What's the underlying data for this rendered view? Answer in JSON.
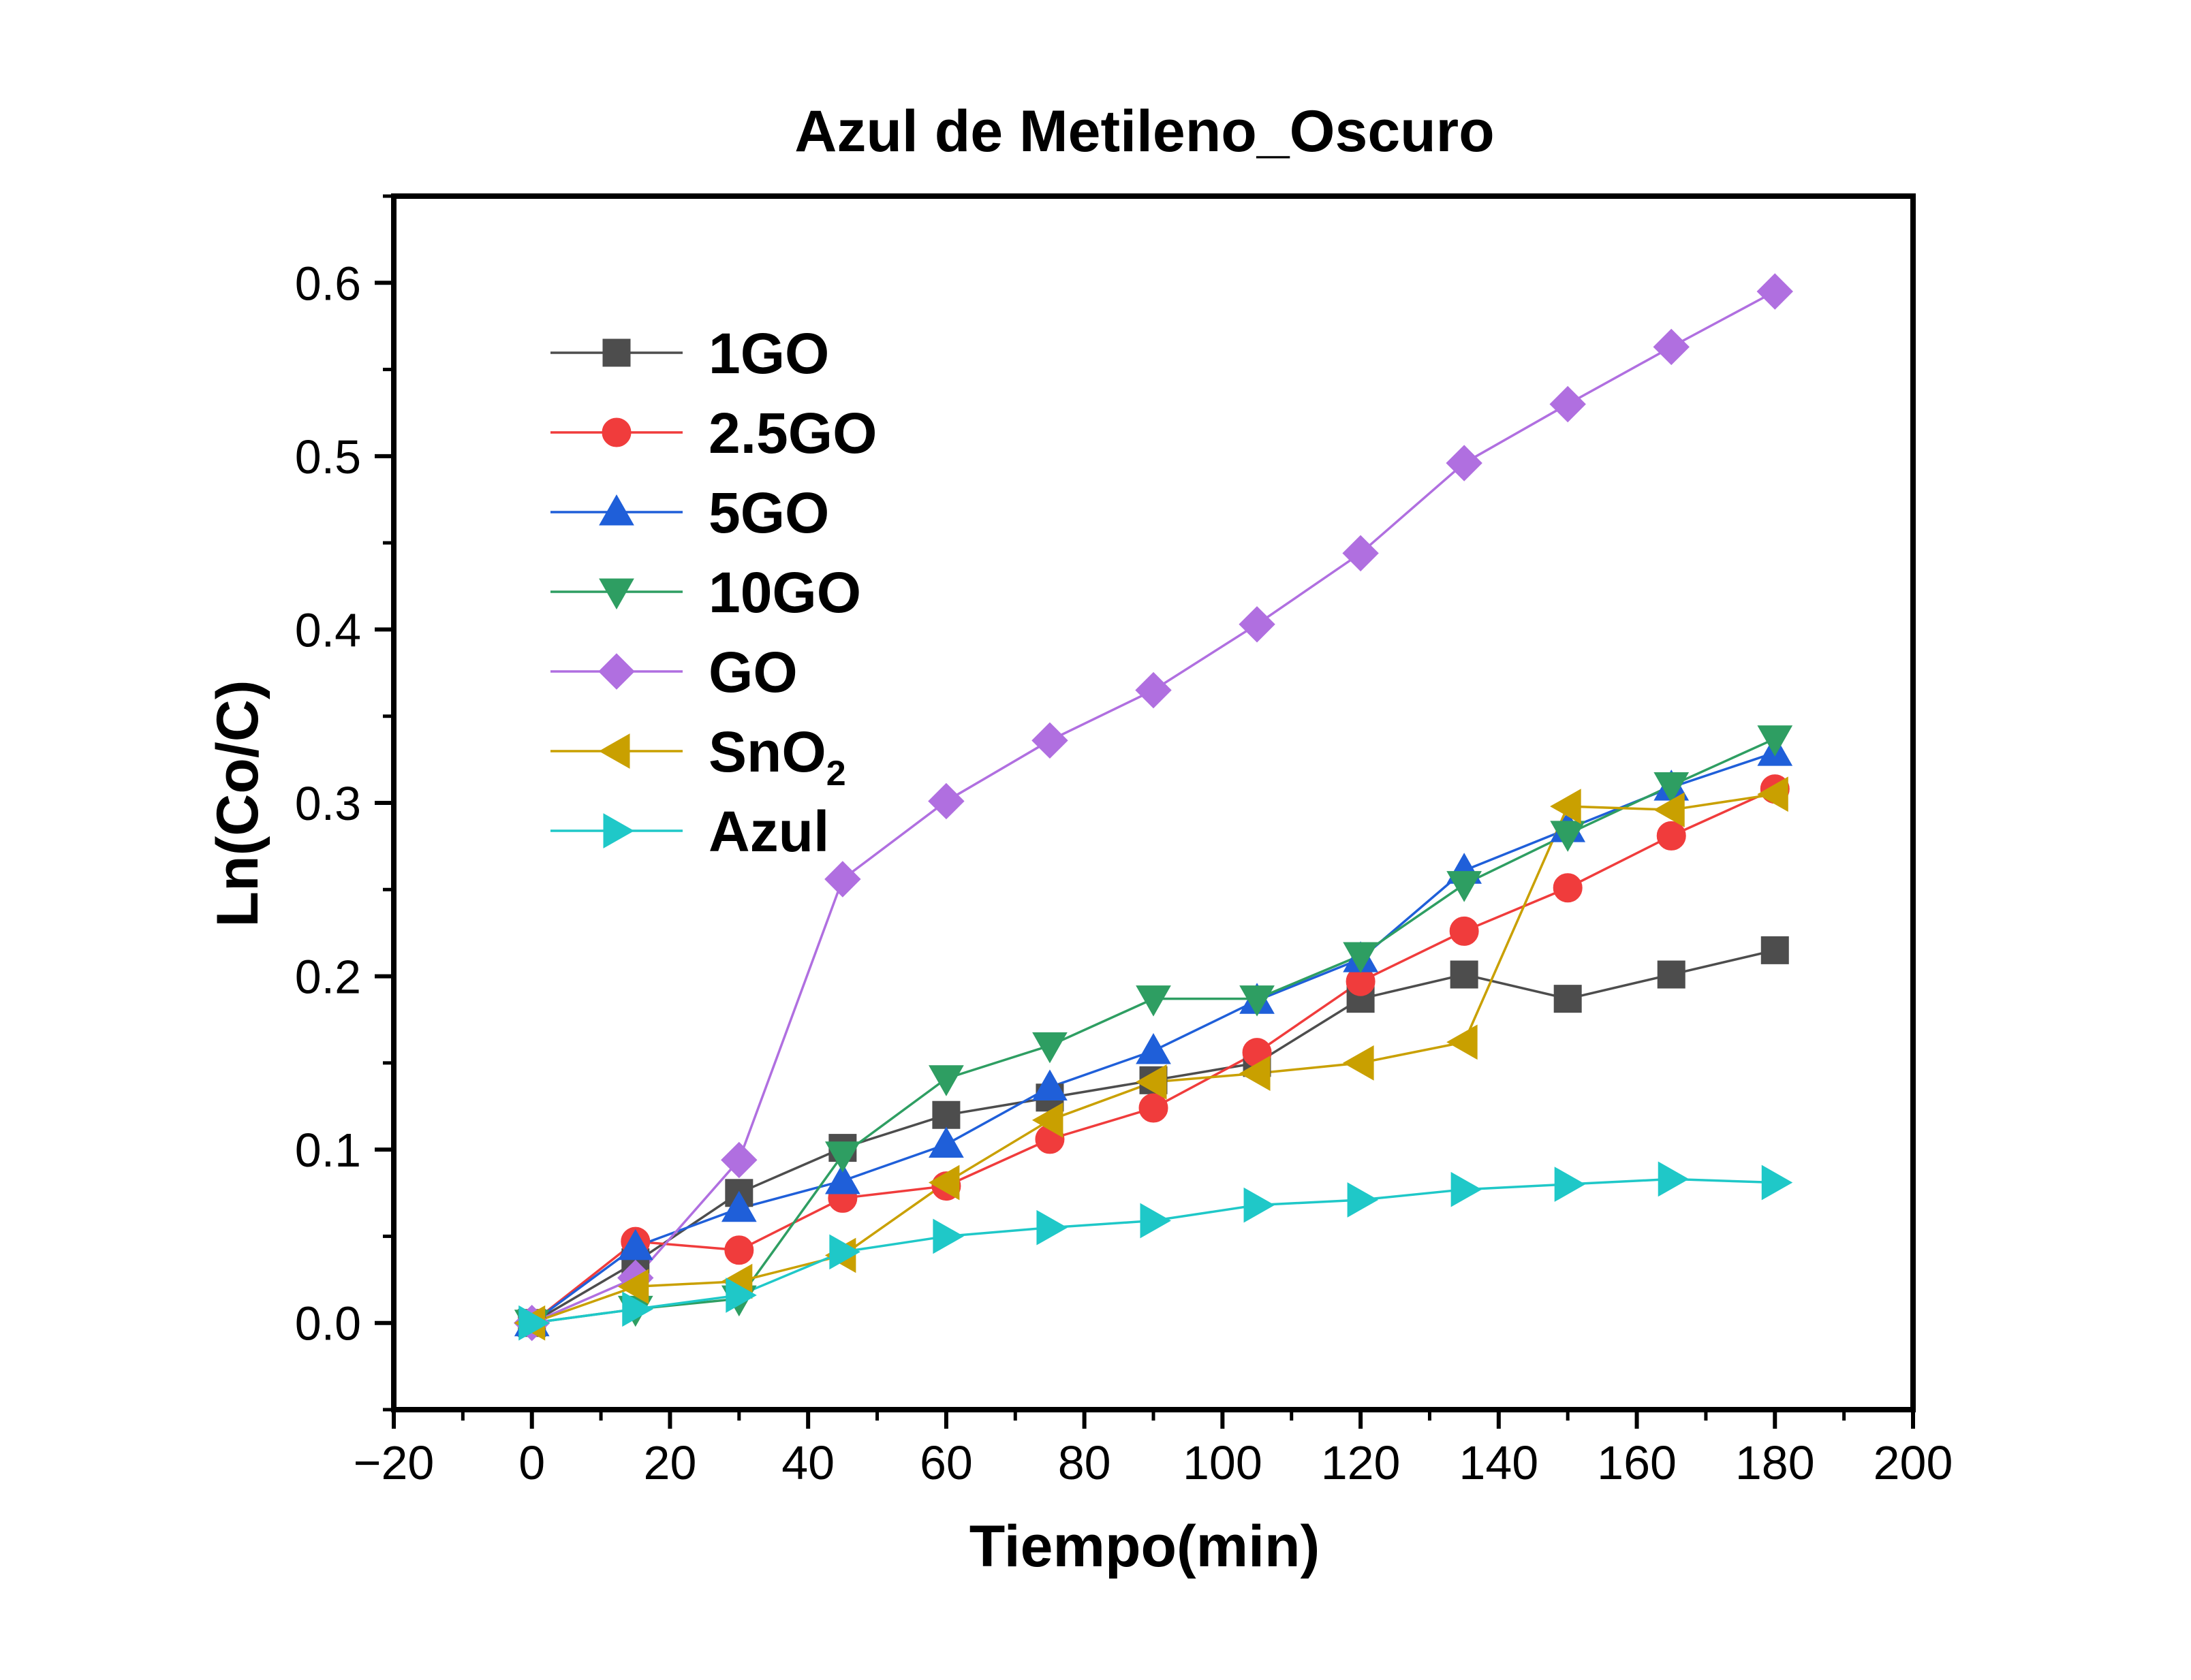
{
  "chart_data": {
    "type": "line",
    "title": "Azul de Metileno_Oscuro",
    "xlabel": "Tiempo(min)",
    "ylabel": "Ln(Co/C)",
    "xlim": [
      -20,
      200
    ],
    "ylim": [
      -0.05,
      0.65
    ],
    "xticks": [
      -20,
      0,
      20,
      40,
      60,
      80,
      100,
      120,
      140,
      160,
      180,
      200
    ],
    "xtick_labels": [
      "−20",
      "0",
      "20",
      "40",
      "60",
      "80",
      "100",
      "120",
      "140",
      "160",
      "180",
      "200"
    ],
    "yticks": [
      0.0,
      0.1,
      0.2,
      0.3,
      0.4,
      0.5,
      0.6
    ],
    "ytick_labels": [
      "0.0",
      "0.1",
      "0.2",
      "0.3",
      "0.4",
      "0.5",
      "0.6"
    ],
    "grid": false,
    "legend_position": "top-left",
    "x": [
      0,
      15,
      30,
      45,
      60,
      75,
      90,
      105,
      120,
      135,
      150,
      165,
      180
    ],
    "series": [
      {
        "name": "1GO",
        "marker": "square",
        "color": "#4d4d4d",
        "values": [
          0.0,
          0.035,
          0.075,
          0.101,
          0.12,
          0.13,
          0.14,
          0.15,
          0.187,
          0.201,
          0.187,
          0.201,
          0.215
        ]
      },
      {
        "name": "2.5GO",
        "marker": "circle",
        "color": "#f03c3c",
        "values": [
          0.0,
          0.047,
          0.042,
          0.072,
          0.079,
          0.106,
          0.124,
          0.156,
          0.197,
          0.226,
          0.251,
          0.281,
          0.308
        ]
      },
      {
        "name": "5GO",
        "marker": "triangle-up",
        "color": "#1f5fd9",
        "values": [
          0.0,
          0.044,
          0.066,
          0.082,
          0.103,
          0.136,
          0.157,
          0.186,
          0.21,
          0.261,
          0.285,
          0.309,
          0.329
        ]
      },
      {
        "name": "10GO",
        "marker": "triangle-down",
        "color": "#2e9e62",
        "values": [
          0.0,
          0.008,
          0.014,
          0.097,
          0.141,
          0.16,
          0.187,
          0.187,
          0.212,
          0.253,
          0.282,
          0.31,
          0.337
        ]
      },
      {
        "name": "GO",
        "marker": "diamond",
        "color": "#b06fe0",
        "values": [
          0.0,
          0.026,
          0.094,
          0.256,
          0.301,
          0.336,
          0.365,
          0.403,
          0.444,
          0.496,
          0.53,
          0.563,
          0.595
        ]
      },
      {
        "name": "SnO",
        "name_subscript": "2",
        "marker": "triangle-left",
        "color": "#c9a000",
        "values": [
          0.0,
          0.021,
          0.024,
          0.039,
          0.081,
          0.117,
          0.139,
          0.144,
          0.15,
          0.162,
          0.298,
          0.296,
          0.305
        ]
      },
      {
        "name": "Azul",
        "marker": "triangle-right",
        "color": "#1fc8c8",
        "values": [
          0.0,
          0.008,
          0.016,
          0.041,
          0.05,
          0.055,
          0.059,
          0.068,
          0.071,
          0.077,
          0.08,
          0.083,
          0.081
        ]
      }
    ]
  }
}
